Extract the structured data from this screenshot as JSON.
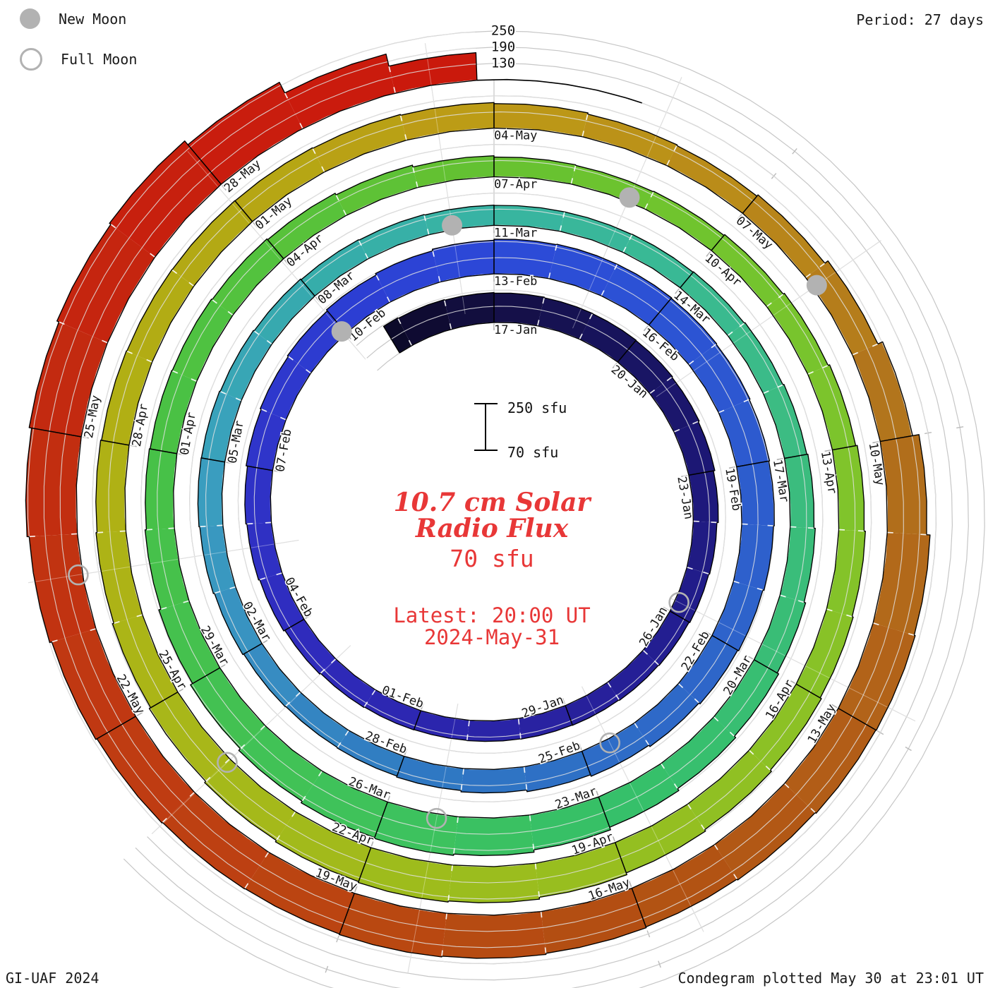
{
  "header": {
    "legend_new_moon": "New Moon",
    "legend_full_moon": "Full Moon",
    "period_label": "Period: 27 days"
  },
  "footer": {
    "credit": "GI-UAF 2024",
    "plotted": "Condegram plotted May 30 at 23:01 UT"
  },
  "center_text": {
    "title_line1": "10.7 cm Solar",
    "title_line2": "Radio Flux",
    "current_flux": "70 sfu",
    "latest_line1": "Latest: 20:00 UT",
    "latest_line2": "2024-May-31"
  },
  "scale_legend": {
    "top": "250 sfu",
    "bottom": "70 sfu"
  },
  "chart_data": {
    "type": "spiral_bar_condegram",
    "title": "10.7 cm Solar Radio Flux",
    "period_days": 27,
    "direction": "clockwise, radius grows outward with time",
    "top_alignment_dates": [
      "17-Jan",
      "13-Feb",
      "11-Mar",
      "07-Apr",
      "04-May",
      "31-May"
    ],
    "flux_axis_levels_sfu": [
      70,
      130,
      190,
      250
    ],
    "radial_axis_tick_labels": [
      "250",
      "190",
      "130"
    ],
    "start_date": "2024-01-14",
    "end_date": "2024-05-30",
    "t_of_first_value": -3,
    "t_start": -2.33,
    "t_end": 134.83,
    "daily_flux_sfu": [
      185,
      183,
      181,
      179,
      177,
      176,
      175,
      172,
      168,
      163,
      158,
      155,
      152,
      150,
      148,
      147,
      146,
      145,
      146,
      148,
      152,
      157,
      161,
      165,
      170,
      174,
      178,
      183,
      189,
      195,
      199,
      201,
      201,
      199,
      197,
      194,
      191,
      188,
      184,
      180,
      175,
      169,
      163,
      157,
      152,
      148,
      146,
      148,
      152,
      156,
      159,
      158,
      155,
      152,
      149,
      147,
      145,
      144,
      144,
      145,
      147,
      150,
      154,
      158,
      163,
      169,
      175,
      182,
      190,
      200,
      209,
      214,
      211,
      204,
      196,
      187,
      179,
      174,
      171,
      169,
      166,
      162,
      155,
      148,
      143,
      141,
      143,
      147,
      152,
      158,
      164,
      169,
      173,
      178,
      184,
      190,
      197,
      204,
      208,
      204,
      198,
      192,
      186,
      181,
      177,
      174,
      172,
      171,
      170,
      168,
      165,
      161,
      156,
      153,
      159,
      173,
      192,
      216,
      229,
      233,
      231,
      227,
      223,
      226,
      230,
      233,
      231,
      233,
      236,
      241,
      249,
      257,
      266,
      274,
      280,
      262,
      218,
      172
    ],
    "date_labels": [
      {
        "label": "17-Jan",
        "t": 0
      },
      {
        "label": "20-Jan",
        "t": 3
      },
      {
        "label": "23-Jan",
        "t": 6
      },
      {
        "label": "26-Jan",
        "t": 9
      },
      {
        "label": "29-Jan",
        "t": 12
      },
      {
        "label": "01-Feb",
        "t": 15
      },
      {
        "label": "04-Feb",
        "t": 18
      },
      {
        "label": "07-Feb",
        "t": 21
      },
      {
        "label": "10-Feb",
        "t": 24
      },
      {
        "label": "13-Feb",
        "t": 27
      },
      {
        "label": "16-Feb",
        "t": 30
      },
      {
        "label": "19-Feb",
        "t": 33
      },
      {
        "label": "22-Feb",
        "t": 36
      },
      {
        "label": "25-Feb",
        "t": 39
      },
      {
        "label": "28-Feb",
        "t": 42
      },
      {
        "label": "02-Mar",
        "t": 45
      },
      {
        "label": "05-Mar",
        "t": 48
      },
      {
        "label": "08-Mar",
        "t": 51
      },
      {
        "label": "11-Mar",
        "t": 54
      },
      {
        "label": "14-Mar",
        "t": 57
      },
      {
        "label": "17-Mar",
        "t": 60
      },
      {
        "label": "20-Mar",
        "t": 63
      },
      {
        "label": "23-Mar",
        "t": 66
      },
      {
        "label": "26-Mar",
        "t": 69
      },
      {
        "label": "29-Mar",
        "t": 72
      },
      {
        "label": "01-Apr",
        "t": 75
      },
      {
        "label": "04-Apr",
        "t": 78
      },
      {
        "label": "07-Apr",
        "t": 81
      },
      {
        "label": "10-Apr",
        "t": 84
      },
      {
        "label": "13-Apr",
        "t": 87
      },
      {
        "label": "16-Apr",
        "t": 90
      },
      {
        "label": "19-Apr",
        "t": 93
      },
      {
        "label": "22-Apr",
        "t": 96
      },
      {
        "label": "25-Apr",
        "t": 99
      },
      {
        "label": "28-Apr",
        "t": 102
      },
      {
        "label": "01-May",
        "t": 105
      },
      {
        "label": "04-May",
        "t": 108
      },
      {
        "label": "07-May",
        "t": 111
      },
      {
        "label": "10-May",
        "t": 114
      },
      {
        "label": "13-May",
        "t": 117
      },
      {
        "label": "16-May",
        "t": 120
      },
      {
        "label": "19-May",
        "t": 123
      },
      {
        "label": "22-May",
        "t": 126
      },
      {
        "label": "25-May",
        "t": 129
      },
      {
        "label": "28-May",
        "t": 132
      }
    ],
    "moons": {
      "new": [
        {
          "date": "2024-02-09",
          "t": 23.96
        },
        {
          "date": "2024-03-10",
          "t": 53.37
        },
        {
          "date": "2024-04-08",
          "t": 82.76
        },
        {
          "date": "2024-05-08",
          "t": 112.14
        }
      ],
      "full": [
        {
          "date": "2024-01-25",
          "t": 8.75
        },
        {
          "date": "2024-02-24",
          "t": 38.52
        },
        {
          "date": "2024-03-25",
          "t": 68.29
        },
        {
          "date": "2024-04-23",
          "t": 97.99
        },
        {
          "date": "2024-05-23",
          "t": 127.58
        }
      ]
    },
    "color_stops": [
      [
        -2.5,
        "#0b0926"
      ],
      [
        0,
        "#140f44"
      ],
      [
        3,
        "#181460"
      ],
      [
        6,
        "#1d1878"
      ],
      [
        9,
        "#221d8e"
      ],
      [
        12,
        "#28219e"
      ],
      [
        15,
        "#2c26b0"
      ],
      [
        18,
        "#2f2cbe"
      ],
      [
        21,
        "#2f33c8"
      ],
      [
        24,
        "#2c3cd2"
      ],
      [
        27,
        "#2c49d8"
      ],
      [
        30,
        "#2c52d4"
      ],
      [
        33,
        "#2d5bce"
      ],
      [
        36,
        "#2e64ca"
      ],
      [
        39,
        "#2e6ec6"
      ],
      [
        42,
        "#2f7ac2"
      ],
      [
        45,
        "#3890c2"
      ],
      [
        48,
        "#3aa0be"
      ],
      [
        51,
        "#36abac"
      ],
      [
        54,
        "#38b4a2"
      ],
      [
        57,
        "#39ba92"
      ],
      [
        60,
        "#3cbc80"
      ],
      [
        63,
        "#38bd74"
      ],
      [
        66,
        "#36c068"
      ],
      [
        69,
        "#3ec25c"
      ],
      [
        72,
        "#44c150"
      ],
      [
        75,
        "#48c146"
      ],
      [
        78,
        "#55c23c"
      ],
      [
        81,
        "#66c130"
      ],
      [
        84,
        "#72c42e"
      ],
      [
        87,
        "#7ec42c"
      ],
      [
        90,
        "#8ac226"
      ],
      [
        93,
        "#96be20"
      ],
      [
        96,
        "#a0bb1b"
      ],
      [
        99,
        "#aab618"
      ],
      [
        102,
        "#b0b014"
      ],
      [
        105,
        "#b4a814"
      ],
      [
        108,
        "#bd9a16"
      ],
      [
        111,
        "#b9891a"
      ],
      [
        114,
        "#b1711c"
      ],
      [
        117,
        "#b26018"
      ],
      [
        120,
        "#b25012"
      ],
      [
        123,
        "#ba4611"
      ],
      [
        126,
        "#c03a12"
      ],
      [
        129,
        "#c22c10"
      ],
      [
        132,
        "#c81e0e"
      ],
      [
        135,
        "#cb180c"
      ]
    ],
    "style_colors": {
      "grid": "#c6c6c6",
      "moon_marker": "#b2b2b2",
      "label_text": "#151515",
      "accent_red_text": "#e83737",
      "block_outline": "#000000"
    },
    "legend_position": "new/full moon top-left; period top-right; scale bar in center"
  }
}
